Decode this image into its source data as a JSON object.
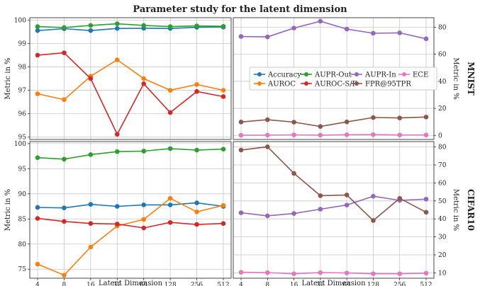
{
  "chart_data": {
    "type": "line",
    "title": "Parameter study for the latent dimension",
    "xlabel": "Latent Dimension",
    "ylabel": "Metric in %",
    "x_categories": [
      "4",
      "8",
      "16",
      "32",
      "64",
      "128",
      "256",
      "512"
    ],
    "legend": {
      "placement": "MNIST right panel, center",
      "entries": [
        "Accuracy",
        "AUPR-Out",
        "AUPR-In",
        "ECE",
        "AUROC",
        "AUROC-S/F",
        "FPR@95TPR"
      ]
    },
    "colors": {
      "Accuracy": "#1f77b4",
      "AUPR-Out": "#2ca02c",
      "AUPR-In": "#9467bd",
      "ECE": "#e377c2",
      "AUROC": "#ff7f0e",
      "AUROC-S/F": "#d62728",
      "FPR@95TPR": "#8c564b"
    },
    "rows": [
      {
        "dataset": "MNIST",
        "left": {
          "ylim": [
            94.9,
            100.1
          ],
          "yticks": [
            "95",
            "96",
            "97",
            "98",
            "99",
            "100"
          ],
          "series": [
            {
              "name": "Accuracy",
              "values": [
                99.55,
                99.63,
                99.55,
                99.64,
                99.65,
                99.64,
                99.69,
                99.7
              ]
            },
            {
              "name": "AUPR-Out",
              "values": [
                99.72,
                99.68,
                99.77,
                99.84,
                99.77,
                99.72,
                99.75,
                99.73
              ]
            },
            {
              "name": "AUROC",
              "values": [
                96.85,
                96.6,
                97.6,
                98.3,
                97.5,
                97.0,
                97.25,
                97.0
              ]
            },
            {
              "name": "AUROC-S/F",
              "values": [
                98.5,
                98.6,
                97.5,
                95.12,
                97.28,
                96.05,
                96.95,
                96.73
              ]
            }
          ]
        },
        "right": {
          "ylim": [
            -3,
            87
          ],
          "yticks": [
            "0",
            "20",
            "40",
            "60",
            "80"
          ],
          "series": [
            {
              "name": "AUPR-In",
              "values": [
                73.1,
                72.8,
                79.3,
                84.4,
                78.6,
                75.5,
                75.8,
                71.4
              ]
            },
            {
              "name": "FPR@95TPR",
              "values": [
                9.9,
                11.6,
                9.8,
                6.6,
                10.0,
                13.2,
                12.9,
                13.6
              ]
            },
            {
              "name": "ECE",
              "values": [
                0.1,
                0.2,
                0.4,
                0.2,
                0.5,
                0.6,
                0.3,
                0.3
              ]
            }
          ]
        }
      },
      {
        "dataset": "CIFAR10",
        "left": {
          "ylim": [
            73.2,
            100.4
          ],
          "yticks": [
            "75",
            "80",
            "85",
            "90",
            "95",
            "100"
          ],
          "series": [
            {
              "name": "Accuracy",
              "values": [
                87.3,
                87.2,
                87.9,
                87.5,
                87.8,
                87.8,
                88.2,
                87.5
              ]
            },
            {
              "name": "AUPR-Out",
              "values": [
                97.2,
                96.9,
                97.8,
                98.4,
                98.5,
                99.0,
                98.7,
                98.9
              ]
            },
            {
              "name": "AUROC",
              "values": [
                76.0,
                73.8,
                79.4,
                83.6,
                84.9,
                89.1,
                86.4,
                87.7
              ]
            },
            {
              "name": "AUROC-S/F",
              "values": [
                85.1,
                84.5,
                84.1,
                84.0,
                83.2,
                84.3,
                83.9,
                84.1
              ]
            }
          ]
        },
        "right": {
          "ylim": [
            7,
            83
          ],
          "yticks": [
            "10",
            "20",
            "30",
            "40",
            "50",
            "60",
            "70",
            "80"
          ],
          "series": [
            {
              "name": "AUPR-In",
              "values": [
                43.4,
                41.7,
                43.0,
                45.4,
                47.7,
                52.6,
                50.3,
                51.0
              ]
            },
            {
              "name": "FPR@95TPR",
              "values": [
                78.3,
                80.1,
                65.3,
                52.9,
                53.3,
                39.1,
                51.4,
                43.7
              ]
            },
            {
              "name": "ECE",
              "values": [
                10.3,
                10.1,
                9.5,
                10.1,
                9.9,
                9.5,
                9.5,
                9.8
              ]
            }
          ]
        }
      }
    ]
  }
}
